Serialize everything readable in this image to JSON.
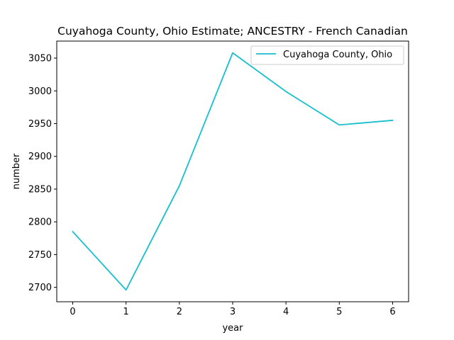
{
  "chart_data": {
    "type": "line",
    "title": "Cuyahoga County, Ohio Estimate; ANCESTRY - French Canadian",
    "xlabel": "year",
    "ylabel": "number",
    "x": [
      0,
      1,
      2,
      3,
      4,
      5,
      6
    ],
    "xticks": [
      "0",
      "1",
      "2",
      "3",
      "4",
      "5",
      "6"
    ],
    "yticks": [
      "2700",
      "2750",
      "2800",
      "2850",
      "2900",
      "2950",
      "3000",
      "3050"
    ],
    "xlim": [
      -0.3,
      6.3
    ],
    "ylim": [
      2678,
      3076
    ],
    "grid": false,
    "legend_position": "top-right",
    "series": [
      {
        "name": "Cuyahoga County, Ohio",
        "color": "#17becf",
        "values": [
          2785,
          2696,
          2855,
          3058,
          2999,
          2948,
          2955
        ]
      }
    ]
  }
}
